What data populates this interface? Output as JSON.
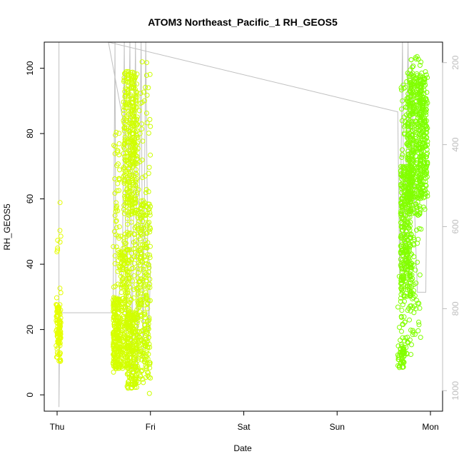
{
  "chart_data": {
    "type": "scatter",
    "title": "ATOM3 Northeast_Pacific_1 RH_GEOS5",
    "xlabel": "Date",
    "ylabel": "RH_GEOS5",
    "x_ticks": [
      {
        "label": "Thu",
        "day": 0
      },
      {
        "label": "Fri",
        "day": 1
      },
      {
        "label": "Sat",
        "day": 2
      },
      {
        "label": "Sun",
        "day": 3
      },
      {
        "label": "Mon",
        "day": 4
      }
    ],
    "xlim_days": [
      -0.18,
      4.18
    ],
    "y_ticks": [
      0,
      20,
      40,
      60,
      80,
      100
    ],
    "ylim": [
      -5,
      108
    ],
    "right_axis": {
      "ticks": [
        200,
        400,
        600,
        800,
        1000
      ],
      "range": [
        1050,
        150
      ],
      "color": "#bdbdbd"
    },
    "grid": false,
    "marker": "open-circle",
    "color_scale": [
      "#e6ff00",
      "#7cff00"
    ],
    "clusters": [
      {
        "day_start": -0.01,
        "day_end": 0.04,
        "rh_min": 7,
        "rh_max": 59,
        "rh_core": [
          10,
          28
        ],
        "n": 110
      },
      {
        "day_start": 0.6,
        "day_end": 0.67,
        "rh_min": 6,
        "rh_max": 83,
        "rh_core": [
          8,
          30
        ],
        "n": 260
      },
      {
        "day_start": 0.67,
        "day_end": 0.77,
        "rh_min": 7,
        "rh_max": 50,
        "rh_core": [
          8,
          45
        ],
        "n": 200
      },
      {
        "day_start": 0.71,
        "day_end": 0.86,
        "rh_min": 40,
        "rh_max": 99,
        "rh_core": [
          55,
          99
        ],
        "n": 380
      },
      {
        "day_start": 0.75,
        "day_end": 0.86,
        "rh_min": 0,
        "rh_max": 40,
        "rh_core": [
          2,
          25
        ],
        "n": 220
      },
      {
        "day_start": 0.86,
        "day_end": 1.0,
        "rh_min": 0,
        "rh_max": 102,
        "rh_core": [
          5,
          60
        ],
        "n": 320
      },
      {
        "day_start": 3.65,
        "day_end": 3.72,
        "rh_min": 6,
        "rh_max": 41,
        "rh_core": [
          8,
          15
        ],
        "n": 60
      },
      {
        "day_start": 3.68,
        "day_end": 3.8,
        "rh_min": 12,
        "rh_max": 97,
        "rh_core": [
          30,
          70
        ],
        "n": 380
      },
      {
        "day_start": 3.75,
        "day_end": 3.9,
        "rh_min": 15,
        "rh_max": 104,
        "rh_core": [
          55,
          99
        ],
        "n": 440
      },
      {
        "day_start": 3.88,
        "day_end": 3.97,
        "rh_min": 55,
        "rh_max": 99,
        "rh_core": [
          60,
          97
        ],
        "n": 220
      }
    ],
    "pressure_trace": [
      {
        "day": 0.02,
        "p": 150
      },
      {
        "day": 0.02,
        "p": 1040
      },
      {
        "day": 0.03,
        "p": 790
      },
      {
        "day": 0.05,
        "p": 810
      },
      {
        "day": 0.6,
        "p": 810
      },
      {
        "day": 0.62,
        "p": 140
      },
      {
        "day": 0.63,
        "p": 830
      },
      {
        "day": 0.7,
        "p": 700
      },
      {
        "day": 0.72,
        "p": 140
      },
      {
        "day": 0.74,
        "p": 900
      },
      {
        "day": 0.78,
        "p": 130
      },
      {
        "day": 0.8,
        "p": 960
      },
      {
        "day": 0.84,
        "p": 130
      },
      {
        "day": 0.86,
        "p": 950
      },
      {
        "day": 0.9,
        "p": 130
      },
      {
        "day": 0.92,
        "p": 930
      },
      {
        "day": 0.95,
        "p": 130
      },
      {
        "day": 0.98,
        "p": 880
      },
      {
        "day": 1.0,
        "p": 700
      },
      {
        "day": 0.55,
        "p": 150
      },
      {
        "day": 3.65,
        "p": 320
      },
      {
        "day": 3.67,
        "p": 730
      },
      {
        "day": 3.7,
        "p": 130
      },
      {
        "day": 3.72,
        "p": 740
      },
      {
        "day": 3.76,
        "p": 130
      },
      {
        "day": 3.78,
        "p": 580
      },
      {
        "day": 3.8,
        "p": 200
      },
      {
        "day": 3.83,
        "p": 560
      },
      {
        "day": 3.86,
        "p": 760
      },
      {
        "day": 3.95,
        "p": 760
      },
      {
        "day": 3.96,
        "p": 500
      }
    ]
  }
}
